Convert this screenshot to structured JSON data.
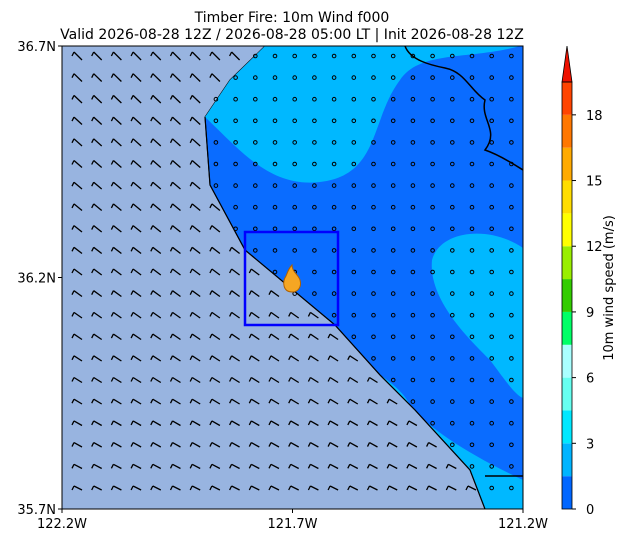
{
  "header": {
    "title": "Timber Fire: 10m Wind f000",
    "subtitle": "Valid 2026-08-28 12Z / 2026-08-28 05:00 LT | Init 2026-08-28 12Z"
  },
  "map": {
    "xlim": [
      -122.2,
      -121.2
    ],
    "ylim": [
      35.7,
      36.7
    ],
    "xticks": [
      {
        "value": -122.2,
        "label": "122.2W"
      },
      {
        "value": -121.7,
        "label": "121.7W"
      },
      {
        "value": -121.2,
        "label": "121.2W"
      }
    ],
    "yticks": [
      {
        "value": 35.7,
        "label": "35.7N"
      },
      {
        "value": 36.2,
        "label": "36.2N"
      },
      {
        "value": 36.7,
        "label": "36.7N"
      }
    ]
  },
  "colorbar": {
    "label": "10m wind speed (m/s)",
    "lim": [
      0,
      19.5
    ],
    "ticks": [
      0,
      3,
      6,
      9,
      12,
      15,
      18
    ],
    "levels": [
      0,
      1.5,
      3,
      4.5,
      6,
      7.5,
      9,
      10.5,
      12,
      13.5,
      15,
      16.5,
      18,
      19.5
    ],
    "colors": [
      "#0066ff",
      "#00b4ff",
      "#00e8ff",
      "#66fff0",
      "#aaffff",
      "#00ff66",
      "#33cc00",
      "#99ee00",
      "#ffff00",
      "#ffdd00",
      "#ffaa00",
      "#ff7700",
      "#ff4400"
    ]
  }
}
